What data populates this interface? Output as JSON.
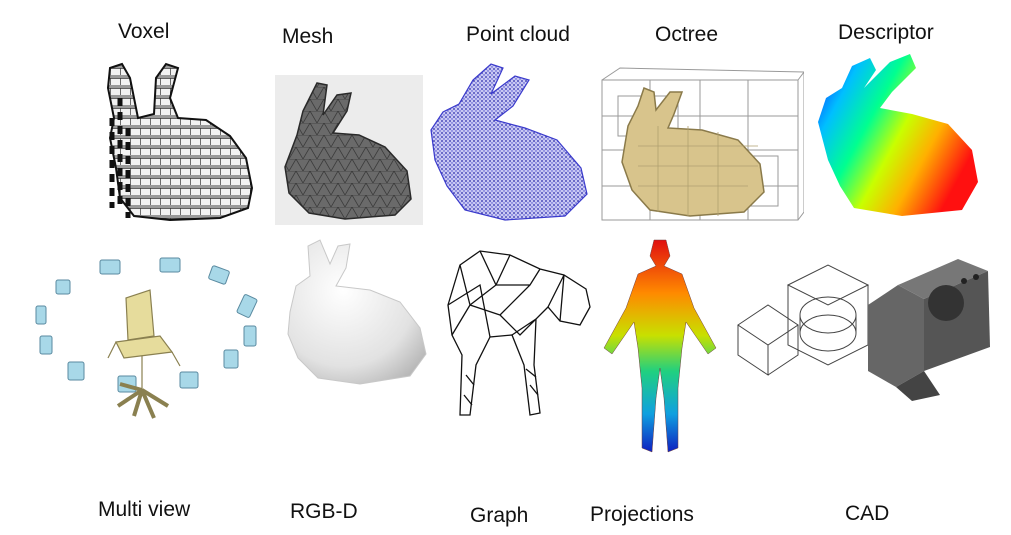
{
  "top_row": [
    {
      "key": "voxel",
      "label": "Voxel",
      "icon": "voxel-bunny-icon"
    },
    {
      "key": "mesh",
      "label": "Mesh",
      "icon": "mesh-bunny-icon"
    },
    {
      "key": "point_cloud",
      "label": "Point cloud",
      "icon": "point-cloud-bunny-icon"
    },
    {
      "key": "octree",
      "label": "Octree",
      "icon": "octree-bunny-icon"
    },
    {
      "key": "descriptor",
      "label": "Descriptor",
      "icon": "descriptor-bunny-icon"
    }
  ],
  "bottom_row": [
    {
      "key": "multi_view",
      "label": "Multi view",
      "icon": "multi-view-chair-icon"
    },
    {
      "key": "rgbd",
      "label": "RGB-D",
      "icon": "rgbd-bunny-icon"
    },
    {
      "key": "graph",
      "label": "Graph",
      "icon": "graph-horse-icon"
    },
    {
      "key": "projections",
      "label": "Projections",
      "icon": "projections-human-icon"
    },
    {
      "key": "cad",
      "label": "CAD",
      "icon": "cad-part-icon"
    }
  ],
  "colors": {
    "mesh_bg": "#ececec",
    "point_cloud": "#3a3acc",
    "octree_fill": "#d8c48c",
    "chair": "#e6dc9c",
    "camera": "#a8d8e8",
    "cad_solid": "#555555"
  }
}
